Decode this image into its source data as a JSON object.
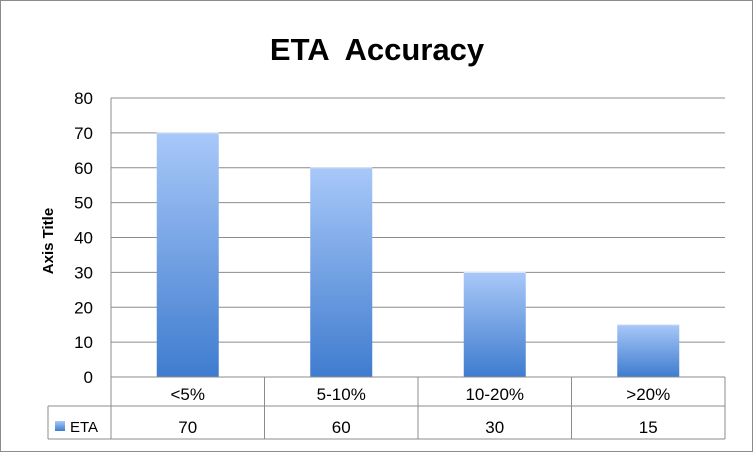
{
  "chart_data": {
    "type": "bar",
    "title": "ETA  Accuracy",
    "ylabel": "Axis Title",
    "xlabel": "",
    "categories": [
      "<5%",
      "5-10%",
      "10-20%",
      ">20%"
    ],
    "series": [
      {
        "name": "ETA",
        "values": [
          70,
          60,
          30,
          15
        ],
        "color": "#5a91d9"
      }
    ],
    "ylim": [
      0,
      80
    ],
    "yticks": [
      0,
      10,
      20,
      30,
      40,
      50,
      60,
      70,
      80
    ],
    "grid": true,
    "data_table": true,
    "colors": {
      "bar_top": "#a8c8f8",
      "bar_bottom": "#3f7ccf",
      "grid": "#8c8c8c",
      "axis": "#8c8c8c"
    }
  }
}
